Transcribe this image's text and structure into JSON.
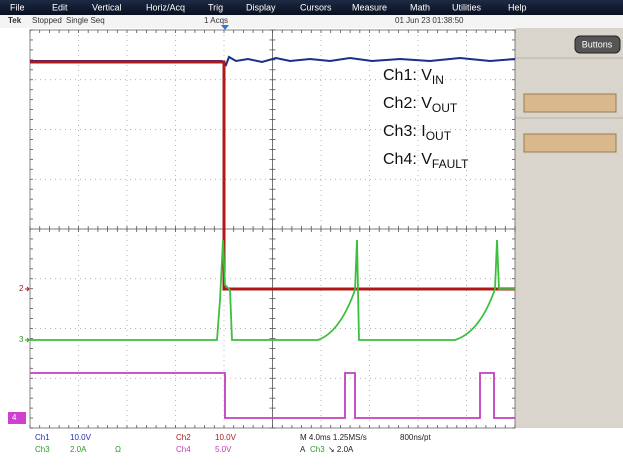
{
  "menu": [
    "File",
    "Edit",
    "Vertical",
    "Horiz/Acq",
    "Trig",
    "Display",
    "Cursors",
    "Measure",
    "Math",
    "Utilities",
    "Help"
  ],
  "status": {
    "brand": "Tek",
    "state": "Stopped",
    "mode": "Single Seq",
    "acqs": "1 Acqs",
    "datetime": "01 Jun 23 01:38:50"
  },
  "button": "Buttons",
  "legend": [
    {
      "label": "Ch1: V",
      "sub": "IN"
    },
    {
      "label": "Ch2: V",
      "sub": "OUT"
    },
    {
      "label": "Ch3: I",
      "sub": "OUT"
    },
    {
      "label": "Ch4: V",
      "sub": "FAULT"
    }
  ],
  "markers": [
    "2",
    "3",
    "4"
  ],
  "readout": {
    "ch1": {
      "name": "Ch1",
      "scale": "10.0V"
    },
    "ch2": {
      "name": "Ch2",
      "scale": "10.0V"
    },
    "ch3": {
      "name": "Ch3",
      "scale": "2.0A",
      "impedance": "Ω"
    },
    "ch4": {
      "name": "Ch4",
      "scale": "5.0V"
    },
    "timebase": "M 4.0ms 1.25MS/s",
    "resolution": "800ns/pt",
    "trigger": {
      "prefix": "A",
      "source": "Ch3",
      "level": "↘ 2.0A"
    }
  }
}
